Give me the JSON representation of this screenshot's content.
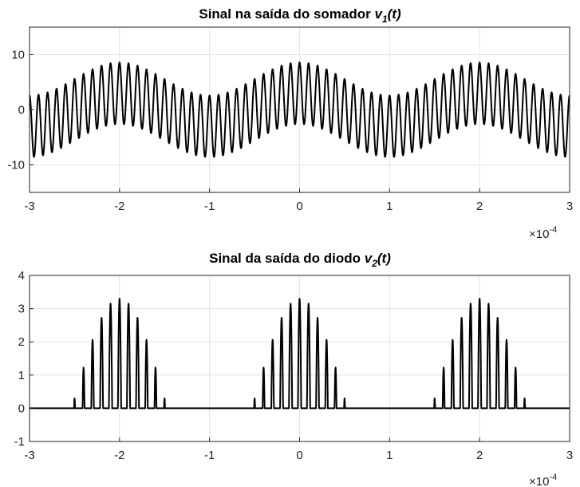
{
  "chart_data": [
    {
      "type": "line",
      "title": "Sinal na saída do somador",
      "title_var": "v",
      "title_sub": "1",
      "title_suffix": "(t)",
      "xlim": [
        -0.0003,
        0.0003
      ],
      "ylim": [
        -15,
        15
      ],
      "x_ticks": [
        -3,
        -2,
        -1,
        0,
        1,
        2,
        3
      ],
      "x_ticklabels": [
        "-3",
        "-2",
        "-1",
        "0",
        "1",
        "2",
        "3"
      ],
      "y_ticks": [
        10,
        0,
        -10
      ],
      "y_ticklabels": [
        "10",
        "0",
        "-10"
      ],
      "x_exponent_base": "×10",
      "x_exponent_power": "-4",
      "grid": true,
      "series": [
        {
          "signal": "sum of two sinusoids",
          "components": [
            {
              "amplitude": 5.6,
              "frequency_hz": 100000
            },
            {
              "amplitude": 3.0,
              "frequency_hz": 5000
            }
          ],
          "peak": 8.6,
          "color": "#000000"
        }
      ]
    },
    {
      "type": "line",
      "title": "Sinal da saída do diodo",
      "title_var": "v",
      "title_sub": "2",
      "title_suffix": "(t)",
      "xlim": [
        -0.0003,
        0.0003
      ],
      "ylim": [
        -1,
        4
      ],
      "x_ticks": [
        -3,
        -2,
        -1,
        0,
        1,
        2,
        3
      ],
      "x_ticklabels": [
        "-3",
        "-2",
        "-1",
        "0",
        "1",
        "2",
        "3"
      ],
      "y_ticks": [
        4,
        3,
        2,
        1,
        0,
        -1
      ],
      "y_ticklabels": [
        "4",
        "3",
        "2",
        "1",
        "0",
        "-1"
      ],
      "x_exponent_base": "×10",
      "x_exponent_power": "-4",
      "grid": true,
      "series": [
        {
          "signal": "half-wave rectified, clipped at 0",
          "peak": 3.3,
          "color": "#000000"
        }
      ]
    }
  ]
}
